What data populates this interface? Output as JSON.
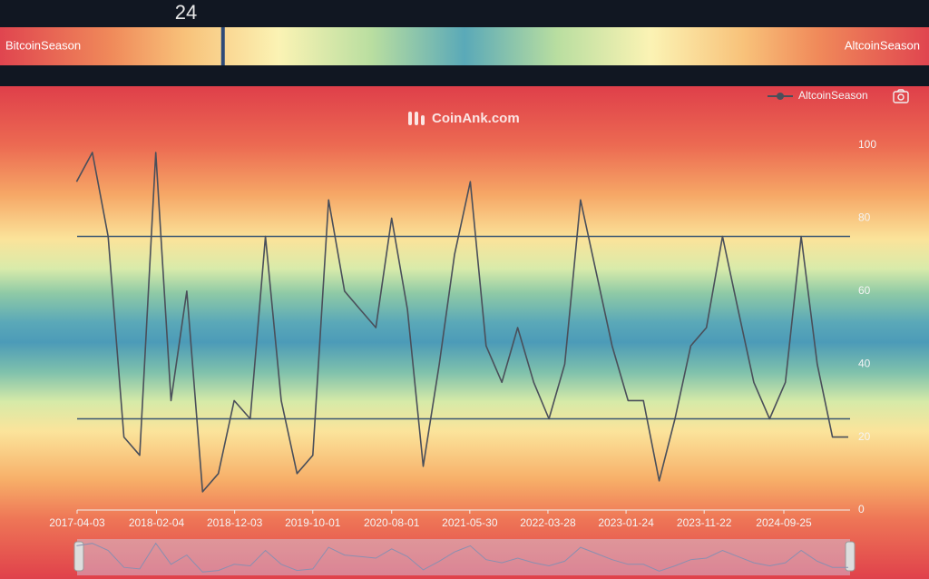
{
  "indicator": {
    "value": 24,
    "scale": [
      0,
      100
    ],
    "left_label": "BitcoinSeason",
    "right_label": "AltcoinSeason"
  },
  "chart_data": {
    "type": "line",
    "watermark": "CoinAnk.com",
    "x": [
      "2017-04-01",
      "2017-06-01",
      "2017-08-01",
      "2017-10-01",
      "2017-12-01",
      "2018-02-01",
      "2018-04-01",
      "2018-06-01",
      "2018-08-01",
      "2018-10-01",
      "2018-12-01",
      "2019-02-01",
      "2019-04-01",
      "2019-06-01",
      "2019-08-01",
      "2019-10-01",
      "2019-12-01",
      "2020-02-01",
      "2020-04-01",
      "2020-06-01",
      "2020-08-01",
      "2020-10-01",
      "2020-12-01",
      "2021-02-01",
      "2021-04-01",
      "2021-06-01",
      "2021-08-01",
      "2021-10-01",
      "2021-12-01",
      "2022-02-01",
      "2022-04-01",
      "2022-06-01",
      "2022-08-01",
      "2022-10-01",
      "2022-12-01",
      "2023-02-01",
      "2023-04-01",
      "2023-06-01",
      "2023-08-01",
      "2023-10-01",
      "2023-12-01",
      "2024-02-01",
      "2024-04-01",
      "2024-06-01",
      "2024-08-01",
      "2024-10-01",
      "2024-12-01",
      "2025-02-01",
      "2025-04-01",
      "2025-06-01"
    ],
    "series": [
      {
        "name": "AltcoinSeason",
        "color": "#4a4f5a",
        "values": [
          90,
          98,
          75,
          20,
          15,
          98,
          30,
          60,
          5,
          10,
          30,
          25,
          75,
          30,
          10,
          15,
          85,
          60,
          55,
          50,
          80,
          55,
          12,
          40,
          70,
          90,
          45,
          35,
          50,
          35,
          25,
          40,
          85,
          65,
          45,
          30,
          30,
          8,
          25,
          45,
          50,
          75,
          55,
          35,
          25,
          35,
          75,
          40,
          20,
          20
        ]
      }
    ],
    "xlim": [
      "2017-04-03",
      "2025-06-08"
    ],
    "xticks": [
      "2017-04-03",
      "2018-02-04",
      "2018-12-03",
      "2019-10-01",
      "2020-08-01",
      "2021-05-30",
      "2022-03-28",
      "2023-01-24",
      "2023-11-22",
      "2024-09-25"
    ],
    "ylim": [
      0,
      100
    ],
    "yticks": [
      0,
      20,
      40,
      60,
      80,
      100
    ],
    "reference_lines": [
      75,
      25
    ],
    "legend": "top-right"
  }
}
